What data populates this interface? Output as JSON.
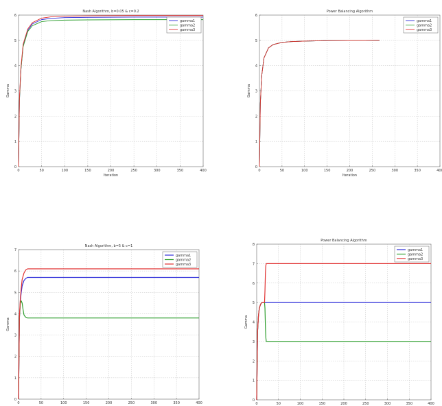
{
  "colors": {
    "gamma1": "#2b2bd8",
    "gamma2": "#2e9e2e",
    "gamma3": "#e03030",
    "grid": "#b5b5b5",
    "axis": "#666666"
  },
  "chart_data": [
    {
      "type": "line",
      "title": "Nash Algorithm, b=0.05 & c=0.2",
      "xlabel": "Iteration",
      "ylabel": "Gamma",
      "xlim": [
        0,
        400
      ],
      "ylim": [
        0,
        6
      ],
      "xticks": [
        0,
        50,
        100,
        150,
        200,
        250,
        300,
        350,
        400
      ],
      "yticks": [
        0,
        1,
        2,
        3,
        4,
        5,
        6
      ],
      "grid": true,
      "legend_position": "top-right",
      "series": [
        {
          "name": "gamma1",
          "color": "#2b2bd8",
          "x": [
            0,
            2,
            5,
            10,
            20,
            30,
            50,
            70,
            100,
            150,
            250,
            400
          ],
          "y": [
            0,
            2.6,
            3.8,
            4.8,
            5.4,
            5.65,
            5.82,
            5.87,
            5.9,
            5.91,
            5.92,
            5.92
          ]
        },
        {
          "name": "gamma2",
          "color": "#2e9e2e",
          "x": [
            0,
            2,
            5,
            10,
            20,
            30,
            50,
            70,
            100,
            150,
            250,
            400
          ],
          "y": [
            0,
            2.6,
            3.8,
            4.75,
            5.35,
            5.58,
            5.74,
            5.78,
            5.8,
            5.81,
            5.82,
            5.82
          ]
        },
        {
          "name": "gamma3",
          "color": "#e03030",
          "x": [
            0,
            2,
            5,
            10,
            20,
            30,
            50,
            70,
            100,
            150,
            250,
            400
          ],
          "y": [
            0,
            2.7,
            3.9,
            4.85,
            5.45,
            5.7,
            5.88,
            5.93,
            5.96,
            5.97,
            5.98,
            5.98
          ]
        }
      ]
    },
    {
      "type": "line",
      "title": "Power Balancing Algorithm",
      "xlabel": "Iteration",
      "ylabel": "Gamma",
      "xlim": [
        0,
        400
      ],
      "ylim": [
        0,
        6
      ],
      "xticks": [
        0,
        50,
        100,
        150,
        200,
        250,
        300,
        350,
        400
      ],
      "yticks": [
        0,
        1,
        2,
        3,
        4,
        5,
        6
      ],
      "grid": true,
      "legend_position": "top-right",
      "series": [
        {
          "name": "gamma1",
          "color": "#2b2bd8",
          "x": [
            0,
            2,
            5,
            10,
            20,
            30,
            50,
            70,
            100,
            150,
            266
          ],
          "y": [
            0,
            2.5,
            3.6,
            4.3,
            4.7,
            4.83,
            4.92,
            4.95,
            4.97,
            4.99,
            5.0
          ]
        },
        {
          "name": "gamma2",
          "color": "#2e9e2e",
          "x": [
            0,
            2,
            5,
            10,
            20,
            30,
            50,
            70,
            100,
            150,
            266
          ],
          "y": [
            0,
            2.5,
            3.6,
            4.3,
            4.7,
            4.83,
            4.92,
            4.95,
            4.97,
            4.99,
            5.0
          ]
        },
        {
          "name": "gamma3",
          "color": "#e03030",
          "x": [
            0,
            2,
            5,
            10,
            20,
            30,
            50,
            70,
            100,
            150,
            266
          ],
          "y": [
            0,
            2.5,
            3.6,
            4.3,
            4.7,
            4.83,
            4.92,
            4.95,
            4.97,
            4.99,
            5.0
          ]
        }
      ]
    },
    {
      "type": "line",
      "title": "Nash Algorithm, b=5 & c=1",
      "xlabel": "",
      "ylabel": "Gamma",
      "xlim": [
        0,
        400
      ],
      "ylim": [
        0,
        7
      ],
      "xticks": [
        0,
        50,
        100,
        150,
        200,
        250,
        300,
        350,
        400
      ],
      "yticks": [
        0,
        1,
        2,
        3,
        4,
        5,
        6,
        7
      ],
      "grid": true,
      "legend_position": "top-right",
      "series": [
        {
          "name": "gamma1",
          "color": "#2b2bd8",
          "x": [
            0,
            2,
            4,
            6,
            8,
            12,
            16,
            20,
            400
          ],
          "y": [
            0,
            3.8,
            4.6,
            5.0,
            5.3,
            5.55,
            5.65,
            5.7,
            5.7
          ]
        },
        {
          "name": "gamma2",
          "color": "#2e9e2e",
          "x": [
            0,
            2,
            4,
            6,
            8,
            10,
            12,
            15,
            20,
            400
          ],
          "y": [
            0,
            3.8,
            4.5,
            4.6,
            4.5,
            4.2,
            3.95,
            3.85,
            3.8,
            3.8
          ]
        },
        {
          "name": "gamma3",
          "color": "#e03030",
          "x": [
            0,
            2,
            4,
            6,
            8,
            12,
            16,
            20,
            400
          ],
          "y": [
            0,
            3.9,
            4.7,
            5.2,
            5.6,
            5.9,
            6.05,
            6.1,
            6.1
          ]
        }
      ]
    },
    {
      "type": "line",
      "title": "Power Balancing Algorithm",
      "xlabel": "",
      "ylabel": "Gamma",
      "xlim": [
        0,
        400
      ],
      "ylim": [
        0,
        8
      ],
      "xticks": [
        0,
        50,
        100,
        150,
        200,
        250,
        300,
        350,
        400
      ],
      "yticks": [
        0,
        1,
        2,
        3,
        4,
        5,
        6,
        7,
        8
      ],
      "grid": true,
      "legend_position": "top-right",
      "series": [
        {
          "name": "gamma1",
          "color": "#2b2bd8",
          "x": [
            0,
            2,
            4,
            6,
            8,
            10,
            12,
            14,
            16,
            18,
            20,
            400
          ],
          "y": [
            0,
            3.5,
            4.3,
            4.7,
            4.85,
            4.95,
            5.0,
            5.0,
            5.0,
            5.0,
            5.0,
            5.0
          ]
        },
        {
          "name": "gamma2",
          "color": "#2e9e2e",
          "x": [
            0,
            2,
            4,
            6,
            8,
            10,
            12,
            14,
            16,
            18,
            19,
            20,
            21,
            22,
            24,
            400
          ],
          "y": [
            0,
            3.5,
            4.3,
            4.7,
            4.85,
            4.95,
            5.0,
            5.0,
            5.0,
            5.0,
            4.7,
            3.8,
            3.2,
            3.0,
            3.0,
            3.0
          ]
        },
        {
          "name": "gamma3",
          "color": "#e03030",
          "x": [
            0,
            2,
            4,
            6,
            8,
            10,
            12,
            14,
            16,
            18,
            19,
            20,
            21,
            22,
            24,
            400
          ],
          "y": [
            0,
            3.5,
            4.3,
            4.7,
            4.85,
            4.95,
            5.0,
            5.0,
            5.0,
            5.0,
            5.6,
            6.5,
            6.9,
            7.0,
            7.0,
            7.0
          ]
        }
      ]
    }
  ]
}
